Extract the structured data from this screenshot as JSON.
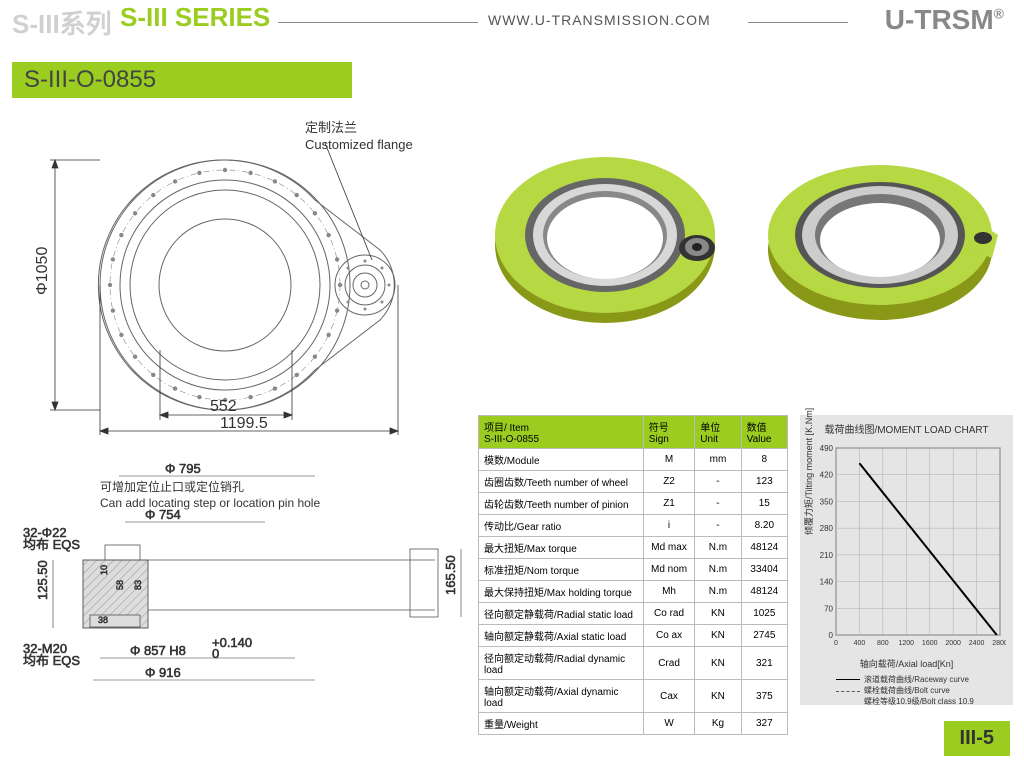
{
  "header": {
    "series_cn": "S-III系列",
    "series_en": "S-III SERIES",
    "url": "WWW.U-TRANSMISSION.COM",
    "brand": "U-TRSM"
  },
  "model": "S-III-O-0855",
  "drawing_top": {
    "flange_cn": "定制法兰",
    "flange_en": "Customized flange",
    "dim_diameter": "Φ1050",
    "dim_inner": "552",
    "dim_total": "1199.5"
  },
  "drawing_bottom": {
    "pin_cn": "可增加定位止口或定位销孔",
    "pin_en": "Can add locating step or location pin hole",
    "d795": "Φ 795",
    "d754": "Φ 754",
    "h22": "32-Φ22",
    "eqs1": "均布 EQS",
    "m20": "32-M20",
    "eqs2": "均布 EQS",
    "d857": "Φ 857 H8",
    "d857tol": "+0.140",
    "d857tol2": "0",
    "d916": "Φ 916",
    "h125": "125.50",
    "h165": "165.50",
    "d10": "10",
    "d58": "58",
    "d83": "83",
    "d38": "38"
  },
  "table": {
    "header": {
      "item": "项目/ Item",
      "model": "S-III-O-0855",
      "sign": "符号\nSign",
      "unit": "单位\nUnit",
      "value": "数值\nValue"
    },
    "rows": [
      {
        "name": "模数/Module",
        "sign": "M",
        "unit": "mm",
        "value": "8"
      },
      {
        "name": "齿圈齿数/Teeth number of wheel",
        "sign": "Z2",
        "unit": "-",
        "value": "123"
      },
      {
        "name": "齿轮齿数/Teeth number of pinion",
        "sign": "Z1",
        "unit": "-",
        "value": "15"
      },
      {
        "name": "传动比/Gear ratio",
        "sign": "i",
        "unit": "-",
        "value": "8.20"
      },
      {
        "name": "最大扭矩/Max torque",
        "sign": "Md max",
        "unit": "N.m",
        "value": "48124"
      },
      {
        "name": "标准扭矩/Nom torque",
        "sign": "Md nom",
        "unit": "N.m",
        "value": "33404"
      },
      {
        "name": "最大保持扭矩/Max holding torque",
        "sign": "Mh",
        "unit": "N.m",
        "value": "48124"
      },
      {
        "name": "径向额定静载荷/Radial static load",
        "sign": "Co rad",
        "unit": "KN",
        "value": "1025"
      },
      {
        "name": "轴向额定静载荷/Axial static load",
        "sign": "Co ax",
        "unit": "KN",
        "value": "2745"
      },
      {
        "name": "径向额定动载荷/Radial dynamic load",
        "sign": "Crad",
        "unit": "KN",
        "value": "321"
      },
      {
        "name": "轴向额定动载荷/Axial dynamic load",
        "sign": "Cax",
        "unit": "KN",
        "value": "375"
      },
      {
        "name": "重量/Weight",
        "sign": "W",
        "unit": "Kg",
        "value": "327"
      }
    ]
  },
  "chart": {
    "title": "载荷曲线图/MOMENT LOAD CHART",
    "ylabel": "倾覆力矩/Tilting moment [K.Nm]",
    "xlabel": "轴向载荷/Axial load[Kn]",
    "yticks": [
      0,
      70,
      140,
      210,
      280,
      350,
      420,
      490
    ],
    "xticks": [
      0,
      400,
      800,
      1200,
      1600,
      2000,
      2400,
      2800
    ],
    "line_points": [
      [
        400,
        450
      ],
      [
        2745,
        0
      ]
    ],
    "xlim": [
      0,
      2800
    ],
    "ylim": [
      0,
      490
    ],
    "legend1": "滚道载荷曲线/Raceway curve",
    "legend2": "螺栓载荷曲线/Bolt curve",
    "legend3": "螺栓等级10.9级/Bolt class 10.9",
    "grid_color": "#aaaaaa",
    "line_color": "#000000",
    "bg_color": "#e5e5e5"
  },
  "page": "III-5",
  "colors": {
    "accent": "#9acd1f",
    "ring_fill": "#b5d843"
  }
}
